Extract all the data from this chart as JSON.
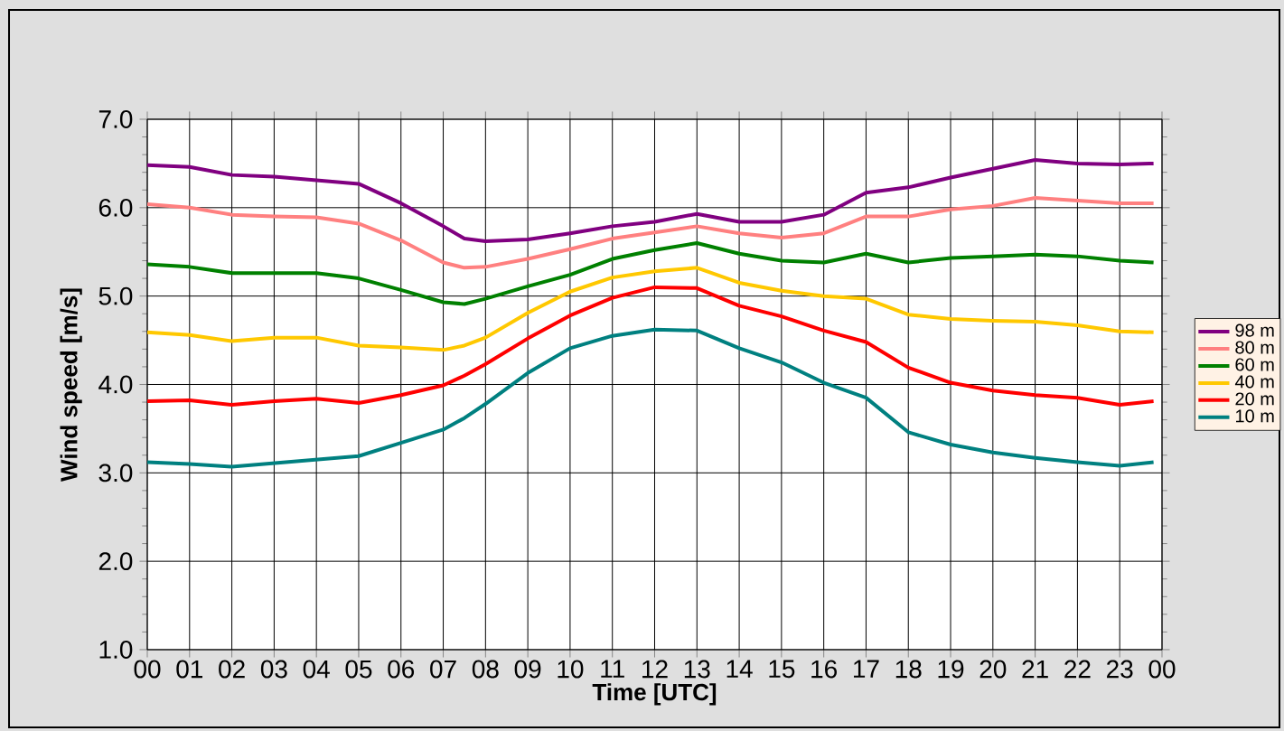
{
  "chart_data": {
    "type": "line",
    "xlabel": "Time [UTC]",
    "ylabel": "Wind speed [m/s]",
    "grid": true,
    "legend": "right",
    "x": [
      0,
      1,
      2,
      3,
      4,
      5,
      6,
      7,
      7.5,
      8,
      9,
      10,
      11,
      12,
      13,
      14,
      15,
      16,
      17,
      18,
      19,
      20,
      21,
      22,
      23,
      23.8
    ],
    "xlim": [
      0,
      24
    ],
    "ylim": [
      1,
      7
    ],
    "xticks": [
      {
        "value": 0,
        "label": "00"
      },
      {
        "value": 1,
        "label": "01"
      },
      {
        "value": 2,
        "label": "02"
      },
      {
        "value": 3,
        "label": "03"
      },
      {
        "value": 4,
        "label": "04"
      },
      {
        "value": 5,
        "label": "05"
      },
      {
        "value": 6,
        "label": "06"
      },
      {
        "value": 7,
        "label": "07"
      },
      {
        "value": 8,
        "label": "08"
      },
      {
        "value": 9,
        "label": "09"
      },
      {
        "value": 10,
        "label": "10"
      },
      {
        "value": 11,
        "label": "11"
      },
      {
        "value": 12,
        "label": "12"
      },
      {
        "value": 13,
        "label": "13"
      },
      {
        "value": 14,
        "label": "14"
      },
      {
        "value": 15,
        "label": "15"
      },
      {
        "value": 16,
        "label": "16"
      },
      {
        "value": 17,
        "label": "17"
      },
      {
        "value": 18,
        "label": "18"
      },
      {
        "value": 19,
        "label": "19"
      },
      {
        "value": 20,
        "label": "20"
      },
      {
        "value": 21,
        "label": "21"
      },
      {
        "value": 22,
        "label": "22"
      },
      {
        "value": 23,
        "label": "23"
      },
      {
        "value": 24,
        "label": "00"
      }
    ],
    "yticks": [
      {
        "value": 1,
        "label": "1.0"
      },
      {
        "value": 2,
        "label": "2.0"
      },
      {
        "value": 3,
        "label": "3.0"
      },
      {
        "value": 4,
        "label": "4.0"
      },
      {
        "value": 5,
        "label": "5.0"
      },
      {
        "value": 6,
        "label": "6.0"
      },
      {
        "value": 7,
        "label": "7.0"
      }
    ],
    "series": [
      {
        "name": "98 m",
        "color": "#800080",
        "values": [
          6.48,
          6.46,
          6.37,
          6.35,
          6.31,
          6.27,
          6.05,
          5.79,
          5.65,
          5.62,
          5.64,
          5.71,
          5.79,
          5.84,
          5.93,
          5.84,
          5.84,
          5.92,
          6.17,
          6.23,
          6.34,
          6.44,
          6.54,
          6.5,
          6.49,
          6.5
        ]
      },
      {
        "name": "80 m",
        "color": "#ff8080",
        "values": [
          6.04,
          6.0,
          5.92,
          5.9,
          5.89,
          5.82,
          5.63,
          5.38,
          5.32,
          5.33,
          5.42,
          5.53,
          5.65,
          5.72,
          5.79,
          5.71,
          5.66,
          5.71,
          5.9,
          5.9,
          5.98,
          6.02,
          6.11,
          6.08,
          6.05,
          6.05
        ]
      },
      {
        "name": "60 m",
        "color": "#008000",
        "values": [
          5.36,
          5.33,
          5.26,
          5.26,
          5.26,
          5.2,
          5.07,
          4.93,
          4.91,
          4.97,
          5.11,
          5.24,
          5.42,
          5.52,
          5.6,
          5.48,
          5.4,
          5.38,
          5.48,
          5.38,
          5.43,
          5.45,
          5.47,
          5.45,
          5.4,
          5.38
        ]
      },
      {
        "name": "40 m",
        "color": "#ffc800",
        "values": [
          4.59,
          4.56,
          4.49,
          4.53,
          4.53,
          4.44,
          4.42,
          4.39,
          4.44,
          4.53,
          4.81,
          5.05,
          5.21,
          5.28,
          5.32,
          5.15,
          5.06,
          5.0,
          4.97,
          4.79,
          4.74,
          4.72,
          4.71,
          4.67,
          4.6,
          4.59
        ]
      },
      {
        "name": "20 m",
        "color": "#ff0000",
        "values": [
          3.81,
          3.82,
          3.77,
          3.81,
          3.84,
          3.79,
          3.88,
          3.99,
          4.1,
          4.23,
          4.52,
          4.78,
          4.98,
          5.1,
          5.09,
          4.89,
          4.77,
          4.61,
          4.48,
          4.19,
          4.02,
          3.93,
          3.88,
          3.85,
          3.77,
          3.81
        ]
      },
      {
        "name": "10 m",
        "color": "#008080",
        "values": [
          3.12,
          3.1,
          3.07,
          3.11,
          3.15,
          3.19,
          3.34,
          3.49,
          3.62,
          3.78,
          4.13,
          4.41,
          4.55,
          4.62,
          4.61,
          4.41,
          4.25,
          4.02,
          3.85,
          3.46,
          3.32,
          3.23,
          3.17,
          3.12,
          3.08,
          3.12
        ]
      }
    ]
  }
}
